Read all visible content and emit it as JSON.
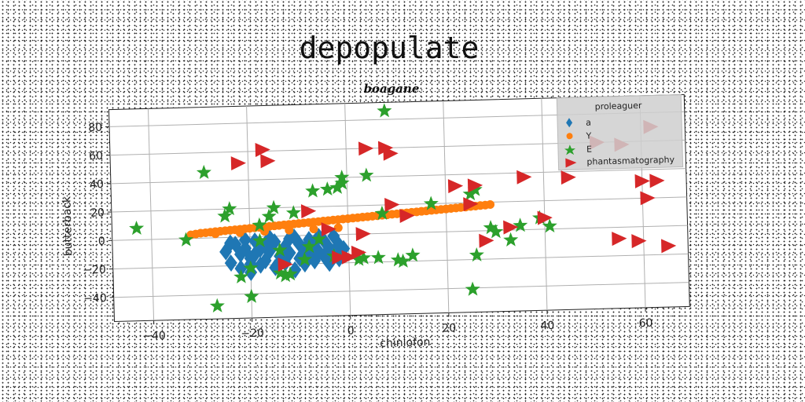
{
  "chart_data": {
    "type": "scatter",
    "title": "depopulate",
    "subtitle": "boagane",
    "xlabel": "chiniofon",
    "ylabel": "butterback",
    "xlim": [
      -48,
      69
    ],
    "ylim": [
      -57,
      92
    ],
    "xticks": [
      -40,
      -20,
      0,
      20,
      40,
      60
    ],
    "yticks": [
      -40,
      -20,
      0,
      20,
      40,
      60,
      80
    ],
    "xtick_labels": [
      "−40",
      "−20",
      "0",
      "20",
      "40",
      "60"
    ],
    "ytick_labels": [
      "−40",
      "−20",
      "0",
      "20",
      "40",
      "60",
      "80"
    ],
    "grid": true,
    "legend": {
      "title": "proleaguer",
      "position": "top-right",
      "entries": [
        "a",
        "Y",
        "E",
        "phantasmatography"
      ]
    },
    "series": [
      {
        "name": "a",
        "marker": "diamond",
        "color": "#1f77b4",
        "points": [
          [
            -25,
            -10
          ],
          [
            -24,
            -18
          ],
          [
            -23,
            -5
          ],
          [
            -22,
            -12
          ],
          [
            -22,
            -22
          ],
          [
            -21,
            -8
          ],
          [
            -20,
            -15
          ],
          [
            -20,
            -25
          ],
          [
            -19,
            -3
          ],
          [
            -19,
            -12
          ],
          [
            -18,
            -20
          ],
          [
            -17,
            -7
          ],
          [
            -17,
            -17
          ],
          [
            -16,
            -10
          ],
          [
            -15,
            -22
          ],
          [
            -15,
            -4
          ],
          [
            -14,
            -14
          ],
          [
            -13,
            -8
          ],
          [
            -13,
            -19
          ],
          [
            -12,
            -2
          ],
          [
            -12,
            -12
          ],
          [
            -11,
            -24
          ],
          [
            -10,
            -6
          ],
          [
            -10,
            -16
          ],
          [
            -9,
            -10
          ],
          [
            -9,
            -20
          ],
          [
            -8,
            -3
          ],
          [
            -8,
            -13
          ],
          [
            -7,
            -8
          ],
          [
            -7,
            -18
          ],
          [
            -6,
            -12
          ],
          [
            -5,
            -4
          ],
          [
            -5,
            -15
          ],
          [
            -4,
            -9
          ],
          [
            -4,
            -20
          ],
          [
            -3,
            -1
          ],
          [
            -3,
            -12
          ],
          [
            -2,
            -7
          ],
          [
            -2,
            -17
          ],
          [
            -1,
            -10
          ],
          [
            -21,
            -2
          ],
          [
            -16,
            -1
          ],
          [
            -11,
            -1
          ],
          [
            -6,
            -1
          ],
          [
            -24,
            -4
          ],
          [
            -18,
            -9
          ],
          [
            -14,
            -18
          ],
          [
            -20,
            -19
          ]
        ]
      },
      {
        "name": "Y",
        "marker": "circle",
        "color": "#ff7f0e",
        "points": [
          [
            -31,
            3
          ],
          [
            -30,
            3.5
          ],
          [
            -29,
            3.7
          ],
          [
            -28,
            4
          ],
          [
            -27,
            4.3
          ],
          [
            -26,
            4.5
          ],
          [
            -25,
            4.8
          ],
          [
            -24,
            5
          ],
          [
            -23,
            5.3
          ],
          [
            -22,
            5.5
          ],
          [
            -21,
            5.8
          ],
          [
            -20,
            6
          ],
          [
            -19,
            6.3
          ],
          [
            -18,
            6.5
          ],
          [
            -17,
            6.8
          ],
          [
            -16,
            7
          ],
          [
            -15,
            7.3
          ],
          [
            -14,
            7.5
          ],
          [
            -13,
            7.8
          ],
          [
            -12,
            8
          ],
          [
            -11,
            8.3
          ],
          [
            -10,
            8.5
          ],
          [
            -9,
            8.8
          ],
          [
            -8,
            9
          ],
          [
            -7,
            9.3
          ],
          [
            -6,
            9.5
          ],
          [
            -5,
            9.8
          ],
          [
            -4,
            10
          ],
          [
            -3,
            10.3
          ],
          [
            -2,
            10.5
          ],
          [
            -1,
            10.8
          ],
          [
            0,
            11
          ],
          [
            1,
            11.3
          ],
          [
            2,
            11.5
          ],
          [
            3,
            11.8
          ],
          [
            4,
            12
          ],
          [
            5,
            12.3
          ],
          [
            6,
            12.5
          ],
          [
            7,
            12.8
          ],
          [
            8,
            13
          ],
          [
            9,
            13.3
          ],
          [
            10,
            13.5
          ],
          [
            11,
            13.8
          ],
          [
            12,
            14
          ],
          [
            13,
            14.3
          ],
          [
            14,
            14.5
          ],
          [
            15,
            14.8
          ],
          [
            16,
            15
          ],
          [
            17,
            15.3
          ],
          [
            18,
            15.5
          ],
          [
            19,
            15.8
          ],
          [
            20,
            16
          ],
          [
            21,
            16.3
          ],
          [
            22,
            16.5
          ],
          [
            23,
            16.8
          ],
          [
            24,
            17
          ],
          [
            25,
            17.3
          ],
          [
            26,
            17.5
          ],
          [
            27,
            17.8
          ],
          [
            28,
            18
          ],
          [
            29,
            18.3
          ],
          [
            -32,
            2.5
          ],
          [
            -27,
            2.8
          ],
          [
            -22,
            3.2
          ],
          [
            -17,
            3.6
          ],
          [
            -12,
            4
          ],
          [
            -7,
            4.4
          ],
          [
            -2,
            4.8
          ]
        ]
      },
      {
        "name": "E",
        "marker": "star",
        "color": "#2ca02c",
        "points": [
          [
            -43,
            8
          ],
          [
            -33,
            -1
          ],
          [
            -29,
            46
          ],
          [
            -27,
            -48
          ],
          [
            -25,
            15
          ],
          [
            -24,
            20
          ],
          [
            -20,
            -22
          ],
          [
            -20,
            -42
          ],
          [
            -18,
            8
          ],
          [
            -16,
            14
          ],
          [
            -15,
            20
          ],
          [
            -14,
            -26
          ],
          [
            -13,
            -28
          ],
          [
            -12,
            -27
          ],
          [
            -11,
            16
          ],
          [
            -9,
            -17
          ],
          [
            -7,
            31
          ],
          [
            -6,
            -3
          ],
          [
            -4,
            32
          ],
          [
            -2,
            33
          ],
          [
            -1,
            36
          ],
          [
            -1,
            40
          ],
          [
            2,
            -18
          ],
          [
            3,
            -17
          ],
          [
            4,
            41
          ],
          [
            6,
            -17
          ],
          [
            7,
            14
          ],
          [
            8,
            86
          ],
          [
            10,
            -19
          ],
          [
            11,
            -20
          ],
          [
            13,
            -16
          ],
          [
            17,
            20
          ],
          [
            25,
            26
          ],
          [
            26,
            29
          ],
          [
            26,
            -17
          ],
          [
            25,
            -41
          ],
          [
            29,
            2
          ],
          [
            30,
            -1
          ],
          [
            33,
            -7
          ],
          [
            35,
            3
          ],
          [
            39,
            8
          ],
          [
            41,
            2
          ],
          [
            -18,
            -3
          ],
          [
            -14,
            -10
          ],
          [
            -22,
            -28
          ],
          [
            -8,
            -8
          ],
          [
            -3,
            -15
          ]
        ]
      },
      {
        "name": "phantasmatography",
        "marker": "triangle-right",
        "color": "#d62728",
        "points": [
          [
            -22,
            52
          ],
          [
            -17,
            61
          ],
          [
            -16,
            53
          ],
          [
            -13,
            -20
          ],
          [
            -8,
            17
          ],
          [
            -4,
            4
          ],
          [
            -2,
            -16
          ],
          [
            0,
            -16
          ],
          [
            2,
            -13
          ],
          [
            3,
            0
          ],
          [
            4,
            60
          ],
          [
            8,
            60
          ],
          [
            9,
            56
          ],
          [
            9,
            20
          ],
          [
            12,
            12
          ],
          [
            22,
            32
          ],
          [
            25,
            19
          ],
          [
            26,
            32
          ],
          [
            28,
            -7
          ],
          [
            33,
            2
          ],
          [
            36,
            37
          ],
          [
            40,
            8
          ],
          [
            45,
            36
          ],
          [
            51,
            60
          ],
          [
            56,
            58
          ],
          [
            62,
            70
          ],
          [
            55,
            -8
          ],
          [
            59,
            -10
          ],
          [
            60,
            32
          ],
          [
            61,
            20
          ],
          [
            63,
            32
          ],
          [
            65,
            -14
          ]
        ]
      }
    ]
  }
}
